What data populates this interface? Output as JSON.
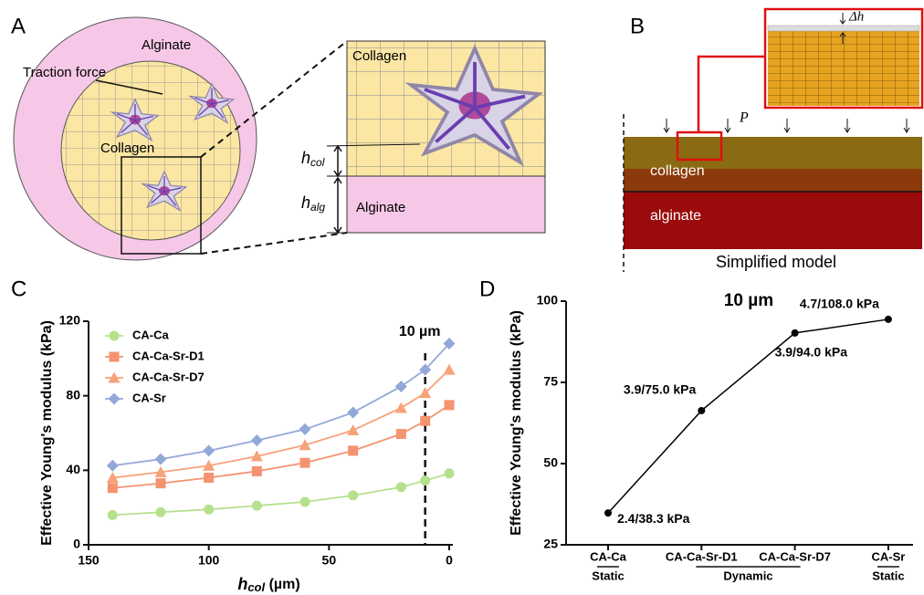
{
  "panel_labels": [
    "A",
    "B",
    "C",
    "D"
  ],
  "diagram_a": {
    "outer": "Alginate",
    "traction": "Traction force",
    "inner": "Collagen",
    "zoom_top": "Collagen",
    "zoom_bottom": "Alginate",
    "h_col": {
      "base": "h",
      "sub": "col"
    },
    "h_alg": {
      "base": "h",
      "sub": "alg"
    }
  },
  "diagram_b": {
    "delta_h": "Δh",
    "pressure": "P",
    "layer_top": "collagen",
    "layer_bottom": "alginate",
    "caption": "Simplified model"
  },
  "chart_data": [
    {
      "type": "line",
      "xlabel": {
        "base": "h",
        "sub": "col",
        "rest": " (µm)"
      },
      "ylabel": "Effective Young's modulus (kPa)",
      "x": [
        140,
        120,
        100,
        80,
        60,
        40,
        20,
        10,
        0
      ],
      "xlim": [
        150,
        0
      ],
      "xticks": [
        150,
        100,
        50,
        0
      ],
      "ylim": [
        0,
        120
      ],
      "yticks": [
        0,
        40,
        80,
        120
      ],
      "vline": {
        "x": 10,
        "label": "10 µm"
      },
      "legend": "upper left",
      "series": [
        {
          "name": "CA-Ca",
          "color": "#b6e08c",
          "marker": "circle",
          "values": [
            16,
            17.5,
            19,
            21,
            23,
            26.5,
            31,
            34.5,
            38.3
          ]
        },
        {
          "name": "CA-Ca-Sr-D1",
          "color": "#f59370",
          "marker": "square",
          "values": [
            30.5,
            33,
            36,
            39.5,
            44,
            50.5,
            59.5,
            66.5,
            75
          ]
        },
        {
          "name": "CA-Ca-Sr-D7",
          "color": "#f7a279",
          "marker": "triangle",
          "values": [
            36,
            39,
            42.5,
            47.5,
            53.5,
            61.5,
            73.5,
            81.5,
            94
          ]
        },
        {
          "name": "CA-Sr",
          "color": "#93a8d9",
          "marker": "diamond",
          "values": [
            42.5,
            46,
            50.5,
            56,
            62,
            71,
            85,
            94,
            108
          ]
        }
      ]
    },
    {
      "type": "line",
      "title": "10 µm",
      "ylabel": "Effective Young's modulus (kPa)",
      "categories": [
        "CA-Ca",
        "CA-Ca-Sr-D1",
        "CA-Ca-Sr-D7",
        "CA-Sr"
      ],
      "groups": [
        {
          "name": "Static",
          "span": 1
        },
        {
          "name": "Dynamic",
          "span": 2
        },
        {
          "name": "Static",
          "span": 1
        }
      ],
      "ylim": [
        25,
        100
      ],
      "yticks": [
        25,
        50,
        75,
        100
      ],
      "color": "#000000",
      "values": [
        34.8,
        66.3,
        90.2,
        94.4
      ],
      "annotations": [
        "2.4/38.3 kPa",
        "3.9/75.0 kPa",
        "3.9/94.0 kPa",
        "4.7/108.0 kPa"
      ]
    }
  ]
}
